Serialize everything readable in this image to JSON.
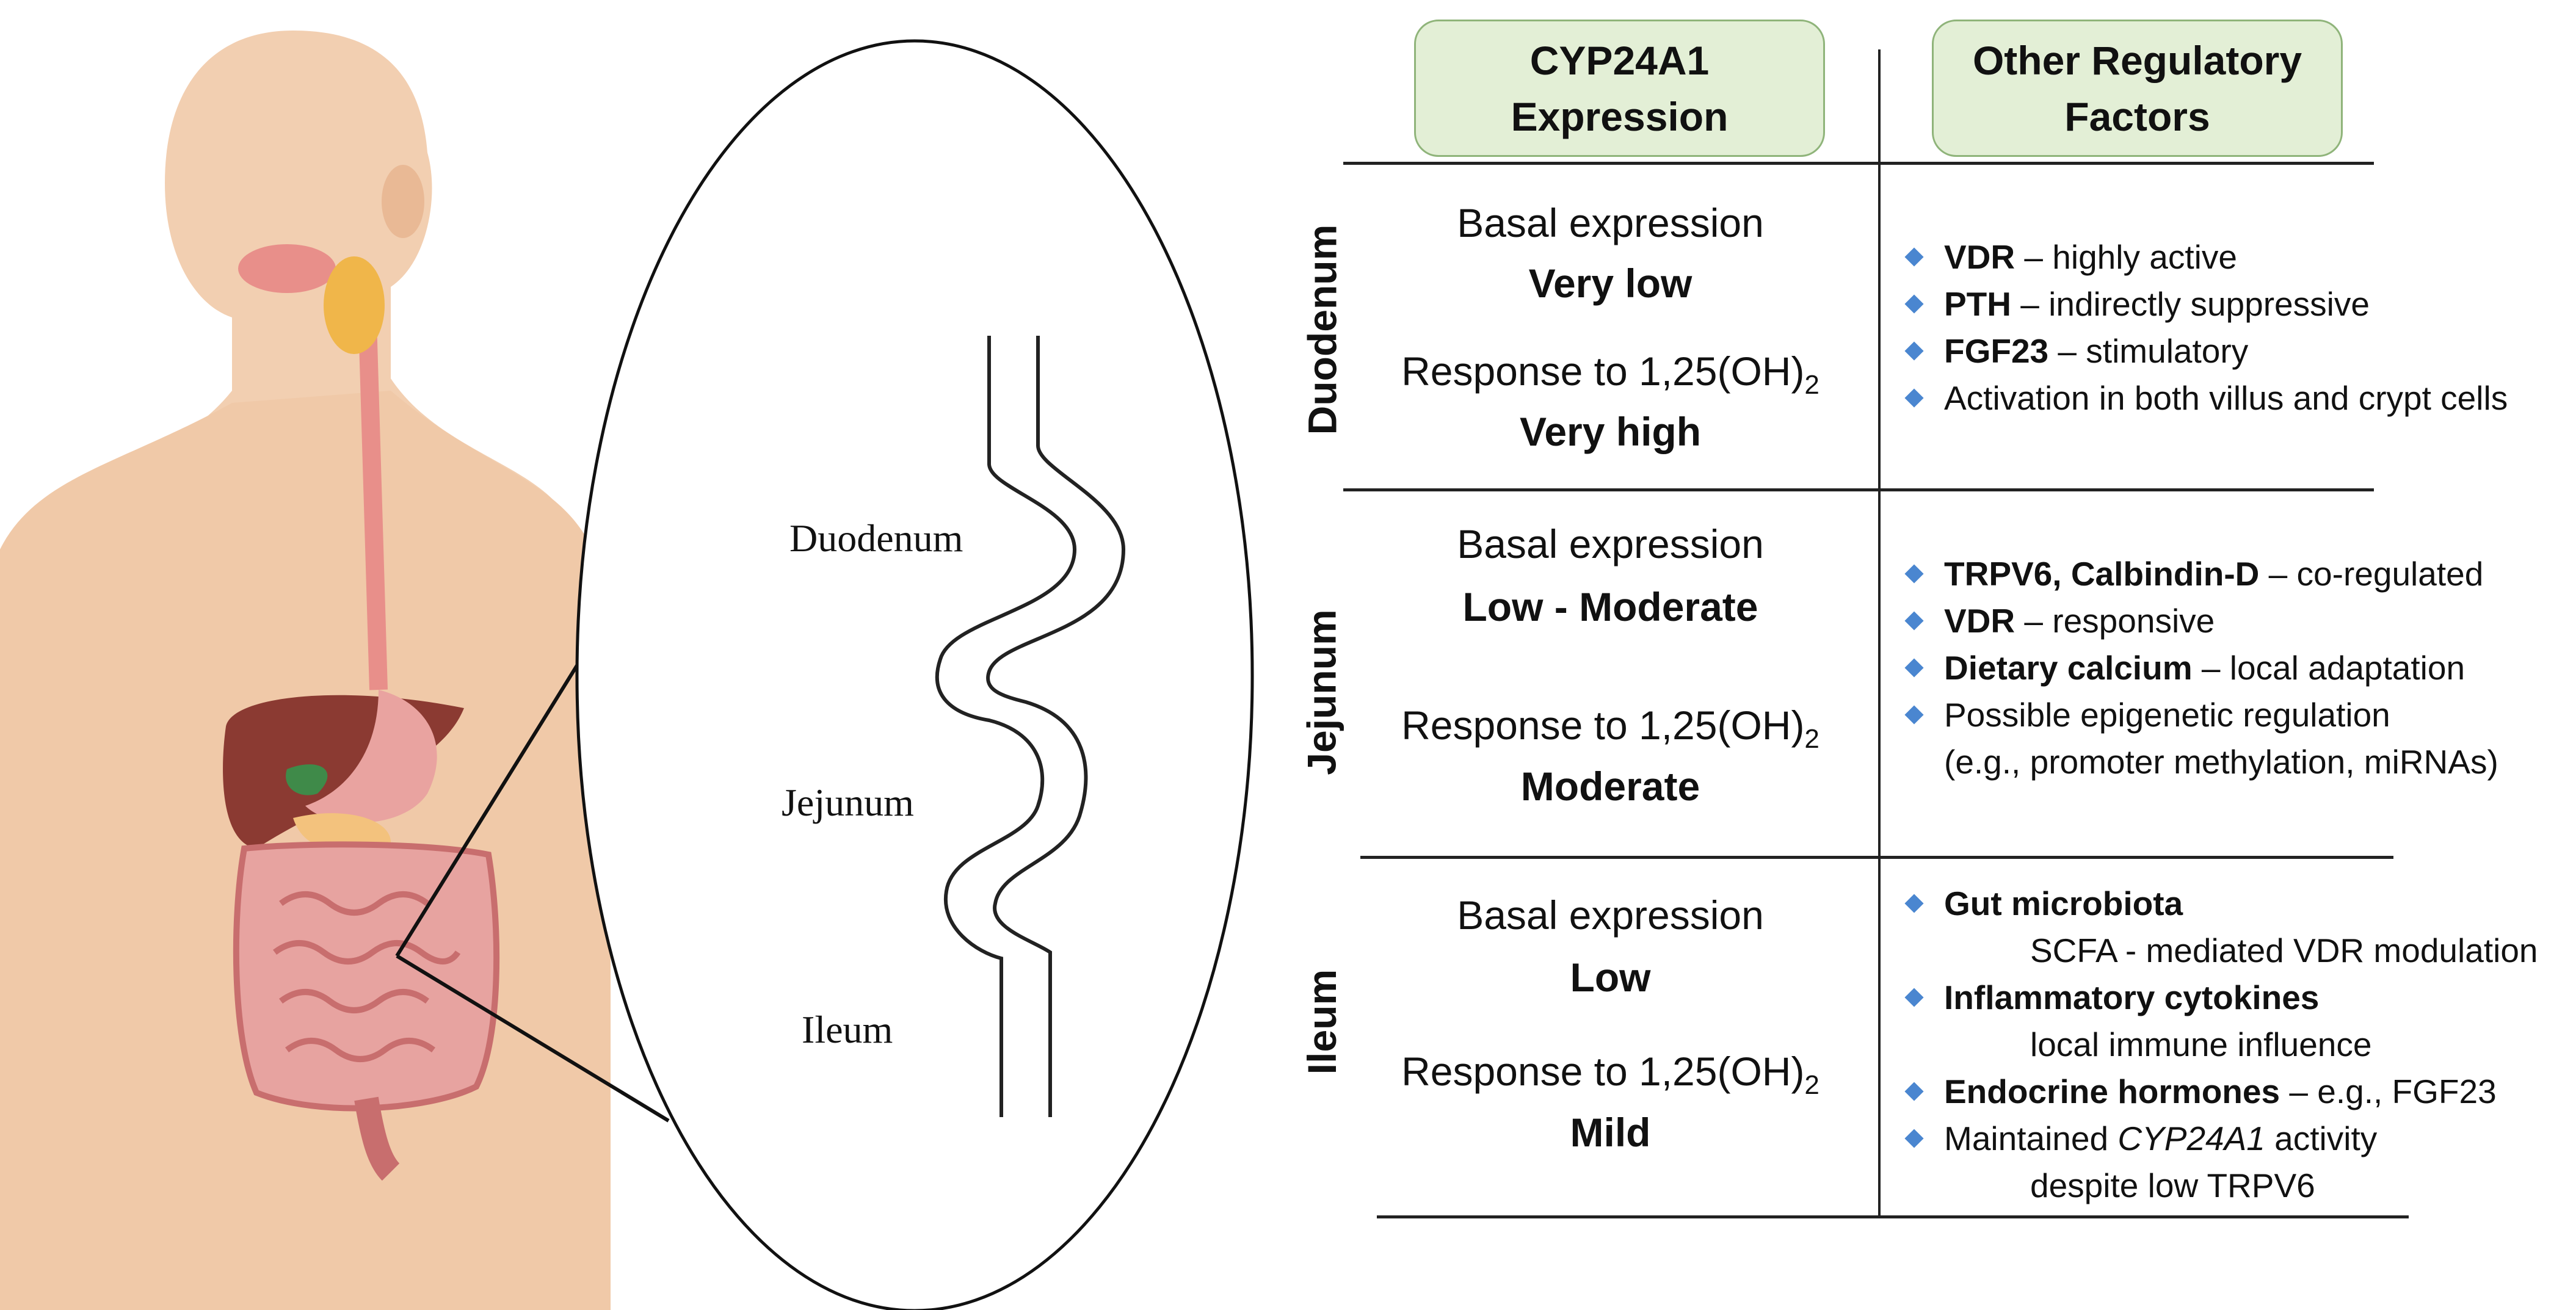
{
  "headers": {
    "col1": [
      "CYP24A1",
      "Expression"
    ],
    "col2": [
      "Other Regulatory",
      "Factors"
    ]
  },
  "diagram_labels": {
    "duodenum": "Duodenum",
    "jejunum": "Jejunum",
    "ileum": "Ileum"
  },
  "colors": {
    "header_fill": "#e3efd6",
    "header_border": "#8fb47a",
    "bullet": "#4a86d0",
    "skin": "#f2cfb1"
  },
  "rows": [
    {
      "segment": "Duodenum",
      "basal_label": "Basal expression",
      "basal_value": "Very low",
      "response_label": "Response to 1,25(OH)",
      "response_sub": "2",
      "response_value": "Very high",
      "factors": [
        {
          "bullet": true,
          "bold": "VDR",
          "text": " – highly active"
        },
        {
          "bullet": true,
          "bold": "PTH",
          "text": " – indirectly suppressive"
        },
        {
          "bullet": true,
          "bold": "FGF23",
          "text": " – stimulatory"
        },
        {
          "bullet": true,
          "text": "Activation in both villus and crypt cells"
        }
      ]
    },
    {
      "segment": "Jejunum",
      "basal_label": "Basal expression",
      "basal_value": "Low - Moderate",
      "response_label": "Response to 1,25(OH)",
      "response_sub": "2",
      "response_value": "Moderate",
      "factors": [
        {
          "bullet": true,
          "bold": "TRPV6, Calbindin-D",
          "text": " – co-regulated"
        },
        {
          "bullet": true,
          "bold": "VDR",
          "text": " – responsive"
        },
        {
          "bullet": true,
          "bold": "Dietary calcium",
          "text": " – local adaptation"
        },
        {
          "bullet": true,
          "text": "Possible epigenetic regulation"
        },
        {
          "bullet": false,
          "indent": 1,
          "text": "(e.g., promoter methylation, miRNAs)"
        }
      ]
    },
    {
      "segment": "Ileum",
      "basal_label": "Basal expression",
      "basal_value": "Low",
      "response_label": "Response to 1,25(OH)",
      "response_sub": "2",
      "response_value": "Mild",
      "factors": [
        {
          "bullet": true,
          "bold": "Gut microbiota"
        },
        {
          "bullet": false,
          "indent": 2,
          "text": "SCFA - mediated VDR modulation"
        },
        {
          "bullet": true,
          "bold": "Inflammatory cytokines"
        },
        {
          "bullet": false,
          "indent": 2,
          "text": "local immune influence"
        },
        {
          "bullet": true,
          "bold": "Endocrine hormones",
          "text": " – e.g., FGF23"
        },
        {
          "bullet": true,
          "text": "Maintained ",
          "italic": "CYP24A1",
          "text2": " activity"
        },
        {
          "bullet": false,
          "indent": 2,
          "text": "despite low TRPV6"
        }
      ]
    }
  ]
}
